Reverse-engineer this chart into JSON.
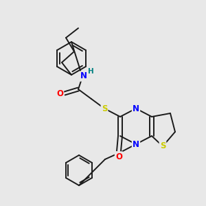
{
  "background_color": "#e8e8e8",
  "bond_color": "#1a1a1a",
  "atom_colors": {
    "N": "#0000ff",
    "O": "#ff0000",
    "S": "#cccc00",
    "H": "#008080"
  },
  "figsize": [
    3.0,
    3.0
  ],
  "dpi": 100,
  "lw": 1.4,
  "fs": 8.5
}
